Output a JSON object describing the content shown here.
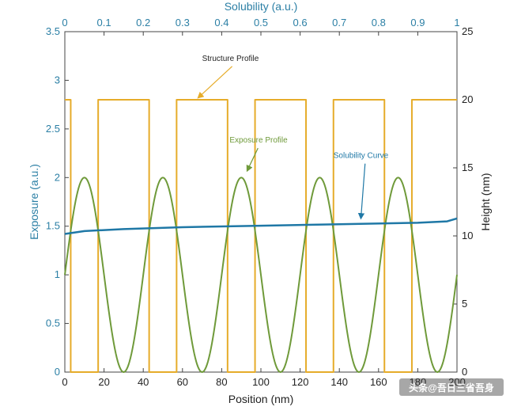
{
  "chart_data": {
    "type": "line",
    "xlabel": "Position (nm)",
    "x_top_label": "Solubility (a.u.)",
    "ylabel_left": "Exposure (a.u.)",
    "ylabel_right": "Height (nm)",
    "xlim": [
      0,
      200
    ],
    "x_top_lim": [
      0,
      1
    ],
    "ylim_left": [
      0,
      3.5
    ],
    "ylim_right": [
      0,
      25
    ],
    "x_ticks": [
      "0",
      "20",
      "40",
      "60",
      "80",
      "100",
      "120",
      "140",
      "160",
      "180",
      "200"
    ],
    "x_top_ticks": [
      "0",
      "0.1",
      "0.2",
      "0.3",
      "0.4",
      "0.5",
      "0.6",
      "0.7",
      "0.8",
      "0.9",
      "1"
    ],
    "y_left_ticks": [
      "0",
      "0.5",
      "1",
      "1.5",
      "2",
      "2.5",
      "3",
      "3.5"
    ],
    "y_right_ticks": [
      "0",
      "5",
      "10",
      "15",
      "20",
      "25"
    ],
    "series": [
      {
        "name": "Structure Profile",
        "axis": "right",
        "color": "#e6ac2a",
        "kind": "square",
        "high": 20,
        "low": 0,
        "high_segments": [
          [
            0,
            3
          ],
          [
            17,
            43
          ],
          [
            57,
            83
          ],
          [
            97,
            123
          ],
          [
            137,
            163
          ],
          [
            177,
            200
          ]
        ]
      },
      {
        "name": "Exposure Profile",
        "axis": "left",
        "color": "#6f9a3a",
        "kind": "sine",
        "period": 40,
        "max": 2.0,
        "min": 0.0,
        "first_peak": 10
      },
      {
        "name": "Solubility Curve",
        "axis": "left",
        "color": "#1f78a6",
        "kind": "line",
        "x": [
          0,
          10,
          30,
          60,
          100,
          140,
          180,
          195,
          200
        ],
        "y": [
          1.42,
          1.45,
          1.47,
          1.49,
          1.505,
          1.52,
          1.535,
          1.55,
          1.58
        ]
      }
    ],
    "annotations": [
      {
        "text": "Structure Profile",
        "x": 70,
        "y": 3.2,
        "color": "#222222",
        "arrow_to": [
          68,
          2.82
        ]
      },
      {
        "text": "Exposure Profile",
        "x": 84,
        "y": 2.36,
        "color": "#6f9a3a",
        "arrow_to": [
          93,
          2.07
        ]
      },
      {
        "text": "Solubility Curve",
        "x": 137,
        "y": 2.2,
        "color": "#1f78a6",
        "arrow_to": [
          151,
          1.58
        ]
      }
    ],
    "watermark": "头条@吾日三省吾身"
  }
}
